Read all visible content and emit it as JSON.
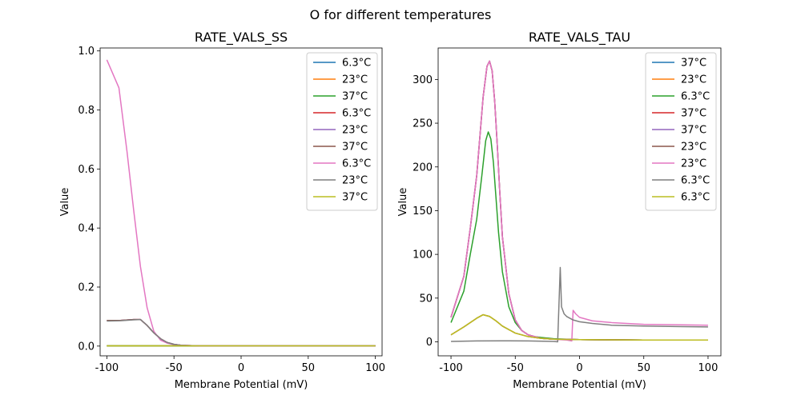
{
  "figure": {
    "suptitle": "O for different temperatures"
  },
  "chart_data": [
    {
      "type": "line",
      "title": "RATE_VALS_SS",
      "xlabel": "Membrane Potential (mV)",
      "ylabel": "Value",
      "xlim": [
        -105,
        105
      ],
      "ylim": [
        -0.033,
        1.01
      ],
      "xticks": [
        -100,
        -50,
        0,
        50,
        100
      ],
      "yticks": [
        0.0,
        0.2,
        0.4,
        0.6,
        0.8,
        1.0
      ],
      "ytick_labels": [
        "0.0",
        "0.2",
        "0.4",
        "0.6",
        "0.8",
        "1.0"
      ],
      "legend_position": "top-right",
      "series": [
        {
          "name": "6.3°C",
          "color": "#1f77b4",
          "x": [
            -100,
            -80,
            -60,
            -40,
            -20,
            0,
            50,
            100
          ],
          "y": [
            0.001,
            0.001,
            0.001,
            0.001,
            0.001,
            0.001,
            0.001,
            0.001
          ]
        },
        {
          "name": "23°C",
          "color": "#ff7f0e",
          "x": [
            -100,
            -80,
            -60,
            -40,
            -20,
            0,
            50,
            100
          ],
          "y": [
            0.001,
            0.001,
            0.001,
            0.001,
            0.001,
            0.001,
            0.001,
            0.001
          ]
        },
        {
          "name": "37°C",
          "color": "#2ca02c",
          "x": [
            -100,
            -80,
            -60,
            -40,
            -20,
            0,
            50,
            100
          ],
          "y": [
            0.001,
            0.001,
            0.001,
            0.001,
            0.001,
            0.001,
            0.001,
            0.001
          ]
        },
        {
          "name": "6.3°C",
          "color": "#d62728",
          "x": [
            -100,
            -90,
            -80,
            -75,
            -70,
            -65,
            -60,
            -55,
            -50,
            -45,
            -40,
            -30,
            0,
            50,
            100
          ],
          "y": [
            0.087,
            0.087,
            0.09,
            0.09,
            0.07,
            0.045,
            0.025,
            0.012,
            0.006,
            0.003,
            0.002,
            0.001,
            0.001,
            0.001,
            0.001
          ]
        },
        {
          "name": "23°C",
          "color": "#9467bd",
          "x": [
            -100,
            -90,
            -80,
            -75,
            -70,
            -65,
            -60,
            -55,
            -50,
            -45,
            -40,
            -30,
            0,
            50,
            100
          ],
          "y": [
            0.087,
            0.087,
            0.09,
            0.09,
            0.07,
            0.045,
            0.025,
            0.012,
            0.006,
            0.003,
            0.002,
            0.001,
            0.001,
            0.001,
            0.001
          ]
        },
        {
          "name": "37°C",
          "color": "#8c564b",
          "x": [
            -100,
            -90,
            -80,
            -75,
            -70,
            -65,
            -60,
            -55,
            -50,
            -45,
            -40,
            -30,
            0,
            50,
            100
          ],
          "y": [
            0.087,
            0.087,
            0.09,
            0.09,
            0.07,
            0.045,
            0.025,
            0.012,
            0.006,
            0.003,
            0.002,
            0.001,
            0.001,
            0.001,
            0.001
          ]
        },
        {
          "name": "6.3°C",
          "color": "#e377c2",
          "x": [
            -100,
            -91,
            -85,
            -80,
            -75,
            -70,
            -65,
            -60,
            -55,
            -50,
            -45,
            -40,
            -30,
            0,
            50,
            100
          ],
          "y": [
            0.97,
            0.875,
            0.66,
            0.46,
            0.27,
            0.13,
            0.05,
            0.02,
            0.01,
            0.005,
            0.003,
            0.002,
            0.001,
            0.001,
            0.001,
            0.001
          ]
        },
        {
          "name": "23°C",
          "color": "#7f7f7f",
          "x": [
            -100,
            -90,
            -80,
            -75,
            -70,
            -65,
            -60,
            -55,
            -50,
            -45,
            -40,
            -30,
            0,
            50,
            100
          ],
          "y": [
            0.085,
            0.086,
            0.089,
            0.09,
            0.07,
            0.045,
            0.025,
            0.012,
            0.006,
            0.003,
            0.002,
            0.001,
            0.001,
            0.001,
            0.001
          ]
        },
        {
          "name": "37°C",
          "color": "#bcbd22",
          "x": [
            -100,
            -80,
            -60,
            -40,
            -20,
            0,
            50,
            100
          ],
          "y": [
            0.001,
            0.001,
            0.001,
            0.001,
            0.001,
            0.001,
            0.001,
            0.001
          ]
        }
      ]
    },
    {
      "type": "line",
      "title": "RATE_VALS_TAU",
      "xlabel": "Membrane Potential (mV)",
      "ylabel": "Value",
      "xlim": [
        -110,
        110
      ],
      "ylim": [
        -16,
        336
      ],
      "xticks": [
        -100,
        -50,
        0,
        50,
        100
      ],
      "yticks": [
        0,
        50,
        100,
        150,
        200,
        250,
        300
      ],
      "ytick_labels": [
        "0",
        "50",
        "100",
        "150",
        "200",
        "250",
        "300"
      ],
      "legend_position": "top-right",
      "series": [
        {
          "name": "37°C",
          "color": "#1f77b4",
          "x": [
            -100,
            -90,
            -80,
            -75,
            -70,
            -65,
            -60,
            -50,
            -40,
            -30,
            -20,
            0,
            50,
            100
          ],
          "y": [
            8,
            17,
            27,
            31,
            29,
            24,
            18,
            10,
            6,
            4,
            3,
            2.5,
            2,
            2
          ]
        },
        {
          "name": "23°C",
          "color": "#ff7f0e",
          "x": [
            -100,
            -90,
            -80,
            -75,
            -70,
            -65,
            -60,
            -50,
            -40,
            -30,
            -20,
            0,
            50,
            100
          ],
          "y": [
            8,
            17,
            27,
            31,
            29,
            24,
            18,
            10,
            6,
            4,
            3,
            2.5,
            2,
            2
          ]
        },
        {
          "name": "6.3°C",
          "color": "#2ca02c",
          "x": [
            -100,
            -90,
            -85,
            -80,
            -76,
            -73,
            -71,
            -69,
            -67,
            -65,
            -63,
            -60,
            -55,
            -50,
            -45,
            -40,
            -35,
            -30,
            -20,
            -10,
            0,
            50,
            100
          ],
          "y": [
            22,
            58,
            100,
            140,
            190,
            230,
            240,
            232,
            205,
            165,
            125,
            80,
            40,
            22,
            13,
            8,
            6,
            5,
            3.5,
            3,
            2.5,
            2,
            2
          ]
        },
        {
          "name": "37°C",
          "color": "#d62728",
          "x": [
            -100,
            -90,
            -85,
            -80,
            -75,
            -72,
            -70,
            -68,
            -66,
            -64,
            -62,
            -60,
            -55,
            -50,
            -45,
            -40,
            -30,
            -20,
            0,
            50,
            100
          ],
          "y": [
            28,
            75,
            130,
            190,
            280,
            315,
            321,
            310,
            275,
            225,
            170,
            120,
            55,
            25,
            13,
            8,
            4,
            3,
            2.5,
            2,
            2
          ]
        },
        {
          "name": "37°C",
          "color": "#9467bd",
          "x": [
            -100,
            -90,
            -85,
            -80,
            -75,
            -72,
            -70,
            -68,
            -66,
            -64,
            -62,
            -60,
            -55,
            -50,
            -45,
            -40,
            -30,
            -20,
            0,
            50,
            100
          ],
          "y": [
            28,
            75,
            130,
            190,
            280,
            315,
            321,
            310,
            275,
            225,
            170,
            120,
            55,
            25,
            13,
            8,
            4,
            3,
            2.5,
            2,
            2
          ]
        },
        {
          "name": "23°C",
          "color": "#8c564b",
          "x": [
            -100,
            -90,
            -85,
            -80,
            -75,
            -72,
            -70,
            -68,
            -66,
            -64,
            -62,
            -60,
            -55,
            -50,
            -45,
            -40,
            -30,
            -20,
            0,
            50,
            100
          ],
          "y": [
            28,
            75,
            130,
            190,
            280,
            315,
            321,
            310,
            275,
            225,
            170,
            120,
            55,
            25,
            13,
            8,
            4,
            3,
            2.5,
            2,
            2
          ]
        },
        {
          "name": "23°C",
          "color": "#e377c2",
          "x": [
            -100,
            -90,
            -85,
            -80,
            -75,
            -72,
            -70,
            -68,
            -66,
            -64,
            -62,
            -60,
            -55,
            -50,
            -45,
            -40,
            -30,
            -20,
            -10,
            -6,
            -5,
            -3,
            0,
            10,
            25,
            50,
            75,
            100
          ],
          "y": [
            28,
            75,
            130,
            190,
            280,
            315,
            321,
            310,
            275,
            225,
            170,
            120,
            55,
            25,
            13,
            8,
            4,
            3,
            2,
            1,
            36,
            32,
            28,
            24,
            22,
            20,
            19.5,
            19
          ]
        },
        {
          "name": "6.3°C",
          "color": "#7f7f7f",
          "x": [
            -100,
            -80,
            -60,
            -40,
            -20,
            -17,
            -15,
            -14,
            -12,
            -10,
            -5,
            0,
            10,
            25,
            50,
            75,
            100
          ],
          "y": [
            0.5,
            1,
            1.2,
            1,
            0.5,
            0,
            85,
            40,
            32,
            29,
            25,
            23,
            21,
            19,
            18,
            17.5,
            17
          ]
        },
        {
          "name": "6.3°C",
          "color": "#bcbd22",
          "x": [
            -100,
            -90,
            -80,
            -75,
            -70,
            -65,
            -60,
            -50,
            -40,
            -30,
            -20,
            0,
            50,
            100
          ],
          "y": [
            8,
            17,
            27,
            31,
            29,
            24,
            18,
            10,
            6,
            4,
            3,
            2.5,
            2,
            2
          ]
        }
      ]
    }
  ]
}
